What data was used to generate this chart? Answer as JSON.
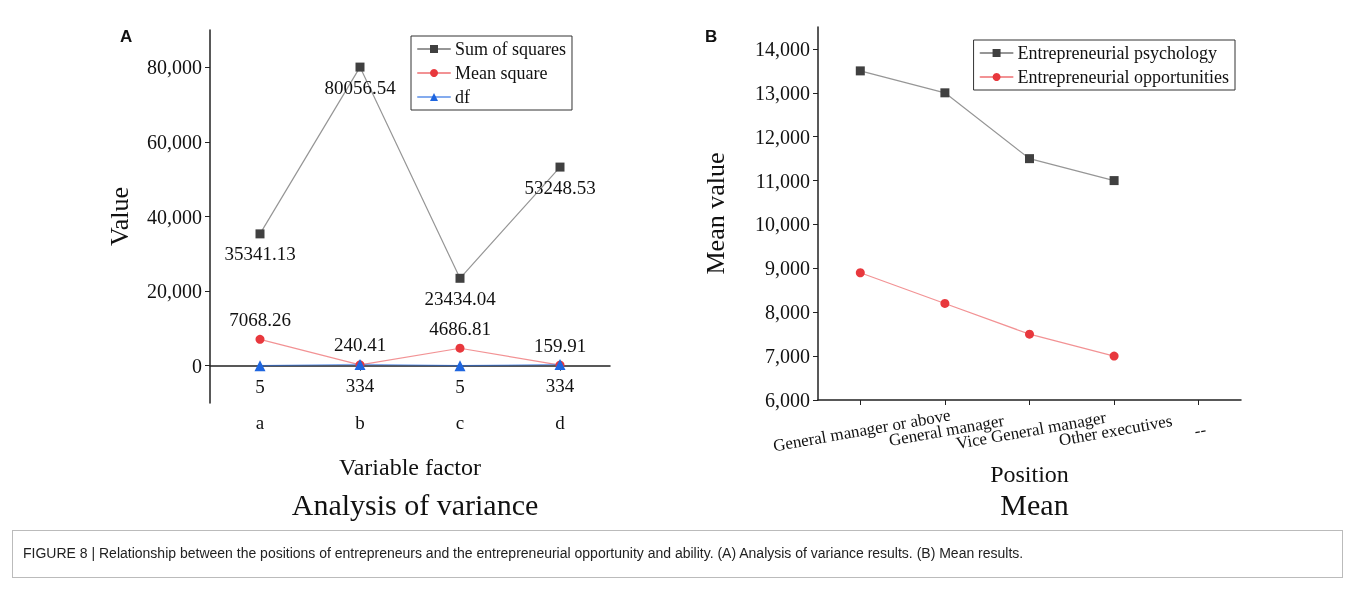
{
  "chart_data": [
    {
      "type": "line",
      "title": "Analysis of variance",
      "xlabel": "Variable factor",
      "ylabel": "Value",
      "categories": [
        "a",
        "b",
        "c",
        "d"
      ],
      "series": [
        {
          "name": "Sum of squares",
          "color": "#404040",
          "marker": "square",
          "values": [
            35341.13,
            80056.54,
            23434.04,
            53248.53
          ]
        },
        {
          "name": "Mean square",
          "color": "#e8383d",
          "marker": "circle",
          "values": [
            7068.26,
            240.41,
            4686.81,
            159.91
          ]
        },
        {
          "name": "df",
          "color": "#1f66e0",
          "marker": "triangle",
          "values": [
            5,
            334,
            5,
            334
          ]
        }
      ],
      "ylim": [
        -10000,
        90000
      ],
      "yticks": [
        0,
        {
          "value": 20000,
          "label": "20,000"
        },
        {
          "value": 40000,
          "label": "40,000"
        },
        {
          "value": 60000,
          "label": "60,000"
        },
        {
          "value": 80000,
          "label": "80,000"
        }
      ],
      "data_labels": true,
      "grid": false,
      "legend": "top right",
      "annotations": [
        "A",
        "FIGURE 8 | Relationship between the positions of entrepreneurs and the entrepreneurial opportunity and ability. (A) Analysis of variance results. (B) Mean results."
      ]
    },
    {
      "type": "line",
      "title": "Mean",
      "xlabel": "Position",
      "ylabel": "Mean value",
      "categories": [
        "General manager or above",
        "General manager",
        "Vice General manager",
        "Other executives",
        "--"
      ],
      "series": [
        {
          "name": "Entrepreneurial psychology",
          "color": "#404040",
          "marker": "square",
          "values": [
            13500,
            13000,
            11500,
            11000,
            null
          ]
        },
        {
          "name": "Entrepreneurial opportunities",
          "color": "#e8383d",
          "marker": "circle",
          "values": [
            8900,
            8200,
            7500,
            7000,
            null
          ]
        }
      ],
      "ylim": [
        6000,
        14500
      ],
      "yticks": [
        {
          "value": 6000,
          "label": "6,000"
        },
        {
          "value": 7000,
          "label": "7,000"
        },
        {
          "value": 8000,
          "label": "8,000"
        },
        {
          "value": 9000,
          "label": "9,000"
        },
        {
          "value": 10000,
          "label": "10,000"
        },
        {
          "value": 11000,
          "label": "11,000"
        },
        {
          "value": 12000,
          "label": "12,000"
        },
        {
          "value": 13000,
          "label": "13,000"
        },
        {
          "value": 14000,
          "label": "14,000"
        }
      ],
      "grid": false,
      "legend": "top right",
      "annotations": [
        "B"
      ]
    }
  ]
}
